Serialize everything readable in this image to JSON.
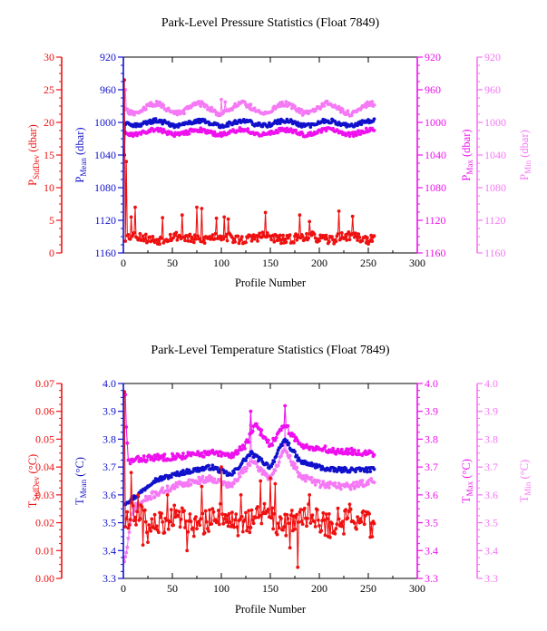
{
  "colors": {
    "stddev": "#ee1111",
    "mean": "#1111cc",
    "max": "#ee11ee",
    "min": "#f578f5",
    "frame": "#000000"
  },
  "chart_data": [
    {
      "type": "scatter",
      "title": "Park-Level Pressure Statistics (Float 7849)",
      "xlabel": "Profile Number",
      "xlim": [
        0,
        300
      ],
      "xticks": [
        "0",
        "50",
        "100",
        "150",
        "200",
        "250",
        "300"
      ],
      "axes": {
        "stddev": {
          "label_main": "P",
          "label_sub": "StdDev",
          "label_unit": " (dbar)",
          "range": [
            0,
            30
          ],
          "reversed": false,
          "ticks": [
            "0",
            "5",
            "10",
            "15",
            "20",
            "25",
            "30"
          ]
        },
        "mean": {
          "label_main": "P",
          "label_sub": "Mean",
          "label_unit": " (dbar)",
          "range": [
            1160,
            920
          ],
          "reversed": true,
          "ticks": [
            "920",
            "960",
            "1000",
            "1040",
            "1080",
            "1120",
            "1160"
          ]
        },
        "max": {
          "label_main": "P",
          "label_sub": "Max",
          "label_unit": " (dbar)",
          "range": [
            1160,
            920
          ],
          "reversed": true,
          "ticks": [
            "920",
            "960",
            "1000",
            "1040",
            "1080",
            "1120",
            "1160"
          ]
        },
        "min": {
          "label_main": "P",
          "label_sub": "Min",
          "label_unit": " (dbar)",
          "range": [
            1160,
            920
          ],
          "reversed": true,
          "ticks": [
            "920",
            "960",
            "1000",
            "1040",
            "1080",
            "1120",
            "1160"
          ]
        }
      },
      "series": [
        {
          "axis": "min",
          "start": 1,
          "end": 256,
          "base": 983,
          "amp": 6,
          "noise": 3,
          "seed": 11,
          "spikes": [
            [
              2,
              960
            ],
            [
              100,
              972
            ],
            [
              104,
              975
            ],
            [
              130,
              978
            ],
            [
              160,
              976
            ],
            [
              245,
              980
            ]
          ]
        },
        {
          "axis": "max",
          "start": 1,
          "end": 256,
          "base": 1012,
          "amp": 3,
          "noise": 2.5,
          "seed": 23,
          "spikes": []
        },
        {
          "axis": "mean",
          "start": 1,
          "end": 256,
          "base": 1001,
          "amp": 3,
          "noise": 2.5,
          "seed": 37,
          "spikes": [
            [
              1,
              1040
            ]
          ]
        },
        {
          "axis": "stddev",
          "start": 1,
          "end": 256,
          "base": 2.3,
          "amp": 0.3,
          "noise": 0.7,
          "seed": 53,
          "spikes": [
            [
              1,
              26.5
            ],
            [
              3,
              14
            ],
            [
              8,
              5.5
            ],
            [
              12,
              7
            ],
            [
              40,
              5.4
            ],
            [
              60,
              5.8
            ],
            [
              75,
              7
            ],
            [
              80,
              6.8
            ],
            [
              95,
              5.3
            ],
            [
              103,
              5.5
            ],
            [
              107,
              5.2
            ],
            [
              145,
              6.2
            ],
            [
              180,
              5.8
            ],
            [
              190,
              4.8
            ],
            [
              220,
              6.4
            ],
            [
              234,
              5.6
            ]
          ]
        }
      ]
    },
    {
      "type": "scatter",
      "title": "Park-Level Temperature Statistics (Float 7849)",
      "xlabel": "Profile Number",
      "xlim": [
        0,
        300
      ],
      "xticks": [
        "0",
        "50",
        "100",
        "150",
        "200",
        "250",
        "300"
      ],
      "axes": {
        "stddev": {
          "label_main": "T",
          "label_sub": "StdDev",
          "label_unit": " (°C)",
          "range": [
            0,
            0.07
          ],
          "reversed": false,
          "ticks": [
            "0.00",
            "0.01",
            "0.02",
            "0.03",
            "0.04",
            "0.05",
            "0.06",
            "0.07"
          ]
        },
        "mean": {
          "label_main": "T",
          "label_sub": "Mean",
          "label_unit": " (°C)",
          "range": [
            3.3,
            4.0
          ],
          "reversed": false,
          "ticks": [
            "3.3",
            "3.4",
            "3.5",
            "3.6",
            "3.7",
            "3.8",
            "3.9",
            "4.0"
          ]
        },
        "max": {
          "label_main": "T",
          "label_sub": "Max",
          "label_unit": " (°C)",
          "range": [
            3.3,
            4.0
          ],
          "reversed": false,
          "ticks": [
            "3.3",
            "3.4",
            "3.5",
            "3.6",
            "3.7",
            "3.8",
            "3.9",
            "4.0"
          ]
        },
        "min": {
          "label_main": "T",
          "label_sub": "Min",
          "label_unit": " (°C)",
          "range": [
            3.3,
            4.0
          ],
          "reversed": false,
          "ticks": [
            "3.3",
            "3.4",
            "3.5",
            "3.6",
            "3.7",
            "3.8",
            "3.9",
            "4.0"
          ]
        }
      },
      "series": [
        {
          "axis": "min",
          "start": 1,
          "end": 256,
          "trend": [
            [
              1,
              3.35
            ],
            [
              10,
              3.55
            ],
            [
              30,
              3.6
            ],
            [
              60,
              3.64
            ],
            [
              90,
              3.66
            ],
            [
              110,
              3.63
            ],
            [
              130,
              3.72
            ],
            [
              150,
              3.66
            ],
            [
              165,
              3.76
            ],
            [
              180,
              3.67
            ],
            [
              200,
              3.64
            ],
            [
              230,
              3.63
            ],
            [
              256,
              3.65
            ]
          ],
          "noise": 0.012,
          "seed": 71,
          "spikes": [
            [
              1,
              3.36
            ],
            [
              130,
              3.85
            ],
            [
              165,
              3.84
            ]
          ]
        },
        {
          "axis": "max",
          "start": 1,
          "end": 256,
          "trend": [
            [
              1,
              3.96
            ],
            [
              5,
              3.72
            ],
            [
              20,
              3.73
            ],
            [
              60,
              3.74
            ],
            [
              90,
              3.75
            ],
            [
              110,
              3.74
            ],
            [
              125,
              3.78
            ],
            [
              135,
              3.85
            ],
            [
              150,
              3.78
            ],
            [
              165,
              3.85
            ],
            [
              180,
              3.78
            ],
            [
              210,
              3.76
            ],
            [
              256,
              3.75
            ]
          ],
          "noise": 0.012,
          "seed": 83,
          "spikes": [
            [
              2,
              3.96
            ],
            [
              130,
              3.9
            ],
            [
              165,
              3.92
            ]
          ]
        },
        {
          "axis": "mean",
          "start": 1,
          "end": 256,
          "trend": [
            [
              1,
              3.57
            ],
            [
              15,
              3.6
            ],
            [
              30,
              3.65
            ],
            [
              60,
              3.68
            ],
            [
              90,
              3.7
            ],
            [
              110,
              3.67
            ],
            [
              130,
              3.75
            ],
            [
              150,
              3.7
            ],
            [
              165,
              3.8
            ],
            [
              180,
              3.72
            ],
            [
              210,
              3.69
            ],
            [
              256,
              3.69
            ]
          ],
          "noise": 0.008,
          "seed": 97,
          "spikes": []
        },
        {
          "axis": "stddev",
          "start": 1,
          "end": 256,
          "base": 0.021,
          "amp": 0.002,
          "noise": 0.0045,
          "seed": 109,
          "spikes": [
            [
              1,
              0.067
            ],
            [
              8,
              0.038
            ],
            [
              15,
              0.03
            ],
            [
              20,
              0.012
            ],
            [
              25,
              0.013
            ],
            [
              45,
              0.03
            ],
            [
              65,
              0.01
            ],
            [
              80,
              0.033
            ],
            [
              100,
              0.04
            ],
            [
              120,
              0.03
            ],
            [
              140,
              0.035
            ],
            [
              150,
              0.036
            ],
            [
              155,
              0.034
            ],
            [
              170,
              0.011
            ],
            [
              178,
              0.004
            ],
            [
              190,
              0.03
            ],
            [
              225,
              0.016
            ]
          ]
        }
      ]
    }
  ]
}
